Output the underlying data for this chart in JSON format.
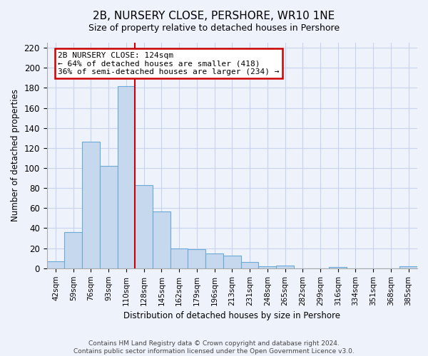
{
  "title": "2B, NURSERY CLOSE, PERSHORE, WR10 1NE",
  "subtitle": "Size of property relative to detached houses in Pershore",
  "xlabel": "Distribution of detached houses by size in Pershore",
  "ylabel": "Number of detached properties",
  "bar_labels": [
    "42sqm",
    "59sqm",
    "76sqm",
    "93sqm",
    "110sqm",
    "128sqm",
    "145sqm",
    "162sqm",
    "179sqm",
    "196sqm",
    "213sqm",
    "231sqm",
    "248sqm",
    "265sqm",
    "282sqm",
    "299sqm",
    "316sqm",
    "334sqm",
    "351sqm",
    "368sqm",
    "385sqm"
  ],
  "bar_values": [
    7,
    36,
    126,
    102,
    182,
    83,
    57,
    20,
    19,
    15,
    13,
    6,
    2,
    3,
    0,
    0,
    1,
    0,
    0,
    0,
    2
  ],
  "bar_color": "#c5d8ee",
  "bar_edge_color": "#6aaad4",
  "vline_x": 4.5,
  "vline_color": "#cc0000",
  "annotation_text": "2B NURSERY CLOSE: 124sqm\n← 64% of detached houses are smaller (418)\n36% of semi-detached houses are larger (234) →",
  "annotation_box_color": "#ffffff",
  "annotation_box_edge": "#cc0000",
  "ylim": [
    0,
    225
  ],
  "yticks": [
    0,
    20,
    40,
    60,
    80,
    100,
    120,
    140,
    160,
    180,
    200,
    220
  ],
  "footer_line1": "Contains HM Land Registry data © Crown copyright and database right 2024.",
  "footer_line2": "Contains public sector information licensed under the Open Government Licence v3.0.",
  "background_color": "#eef2fb",
  "grid_color": "#c8d4ee"
}
